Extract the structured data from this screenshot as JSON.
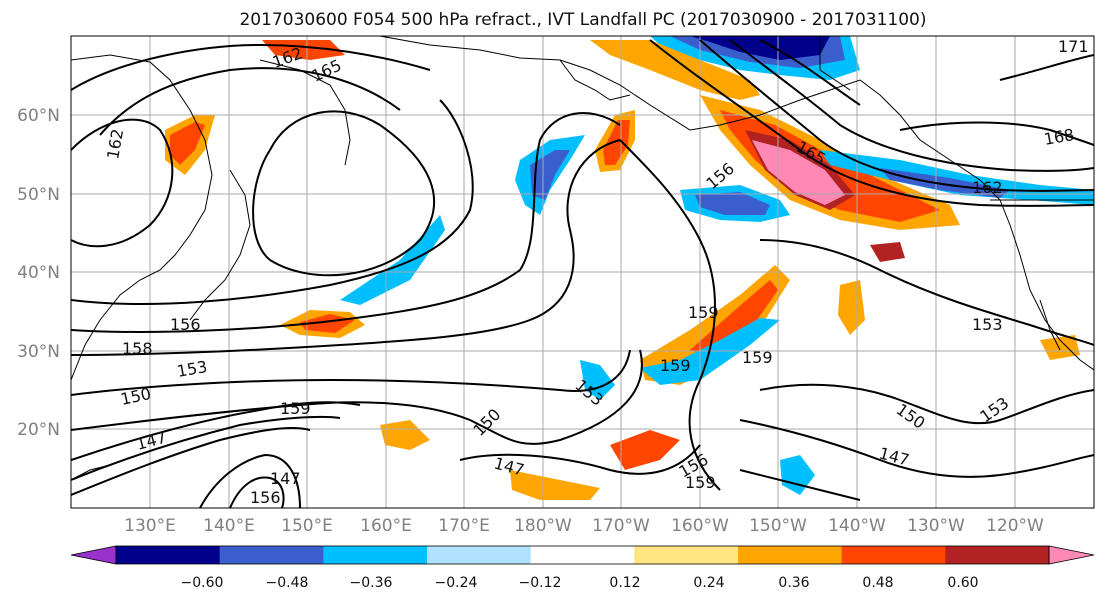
{
  "title": "2017030600 F054 500 hPa refract., IVT Landfall PC (2017030900 - 2017031100)",
  "latitude_labels": [
    "60°N",
    "50°N",
    "40°N",
    "30°N",
    "20°N"
  ],
  "longitude_labels": [
    "130°E",
    "140°E",
    "150°E",
    "160°E",
    "170°E",
    "180°W",
    "170°W",
    "160°W",
    "150°W",
    "140°W",
    "130°W",
    "120°W"
  ],
  "colorbar": {
    "colors": [
      "#9932cc",
      "#00008b",
      "#3a5fcd",
      "#00bfff",
      "#b0e2ff",
      "#ffffff",
      "#ffe680",
      "#ffa500",
      "#ff4500",
      "#b22222",
      "#ff88b4"
    ],
    "labels": [
      "−0.60",
      "−0.48",
      "−0.36",
      "−0.24",
      "−0.12",
      "0.12",
      "0.24",
      "0.36",
      "0.48",
      "0.60"
    ]
  },
  "contour_labels": [
    "162",
    "165",
    "162",
    "156",
    "158",
    "153",
    "150",
    "147",
    "159",
    "147",
    "156",
    "150",
    "153",
    "147",
    "156",
    "159",
    "159",
    "159",
    "159",
    "153",
    "150",
    "153",
    "147",
    "168",
    "165",
    "162",
    "156",
    "171"
  ]
}
